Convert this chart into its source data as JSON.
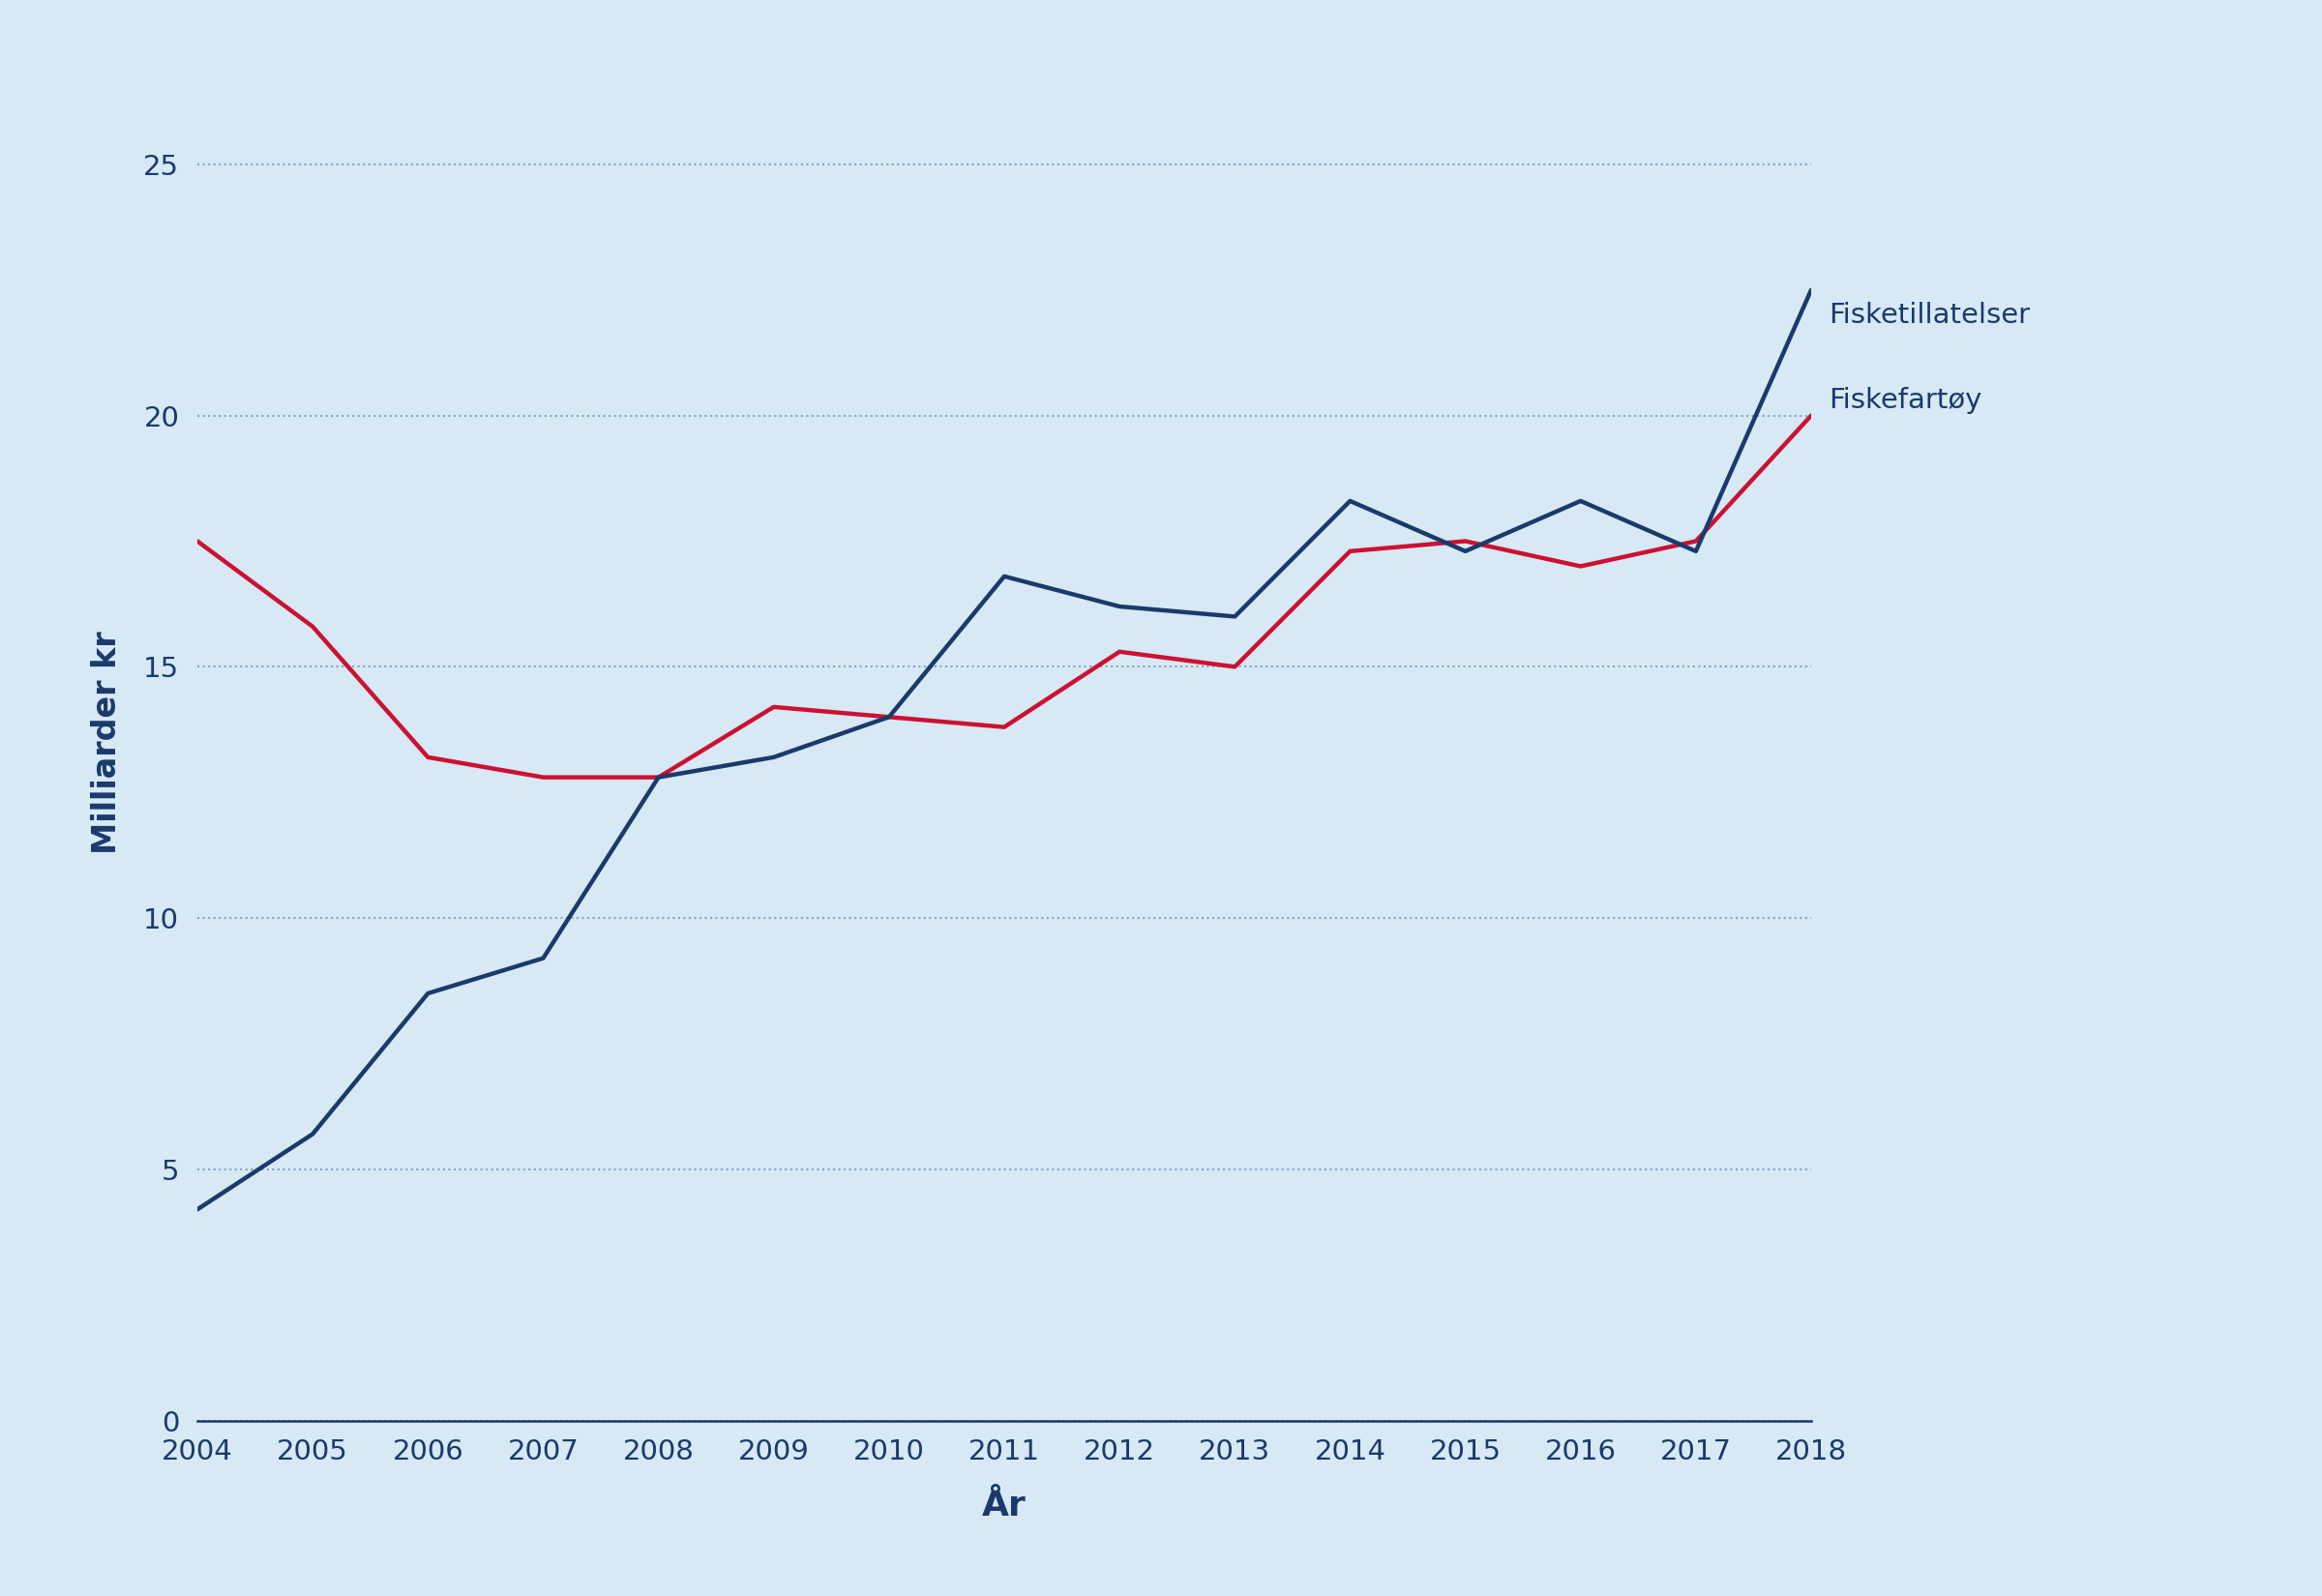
{
  "years": [
    2004,
    2005,
    2006,
    2007,
    2008,
    2009,
    2010,
    2011,
    2012,
    2013,
    2014,
    2015,
    2016,
    2017,
    2018
  ],
  "fisketillatelser": [
    4.2,
    5.7,
    8.5,
    9.2,
    12.8,
    13.2,
    14.0,
    16.8,
    16.2,
    16.0,
    18.3,
    17.3,
    18.3,
    17.3,
    22.5
  ],
  "fiskefartoy": [
    17.5,
    15.8,
    13.2,
    12.8,
    12.8,
    14.2,
    14.0,
    13.8,
    15.3,
    15.0,
    17.3,
    17.5,
    17.0,
    17.5,
    20.0
  ],
  "line_color_tillatelser": "#1b3a6b",
  "line_color_fartoy": "#cc1133",
  "background_color": "#d6e9f5",
  "ylabel": "Milliarder kr",
  "xlabel": "År",
  "label_tillatelser": "Fisketillatelser",
  "label_fartoy": "Fiskefartøy",
  "ylim": [
    0,
    27
  ],
  "yticks": [
    0,
    5,
    10,
    15,
    20,
    25
  ],
  "xlim_min": 2004,
  "xlim_max": 2018,
  "line_width": 3.2,
  "axis_color": "#1b3a6b",
  "tick_label_fontsize": 21,
  "axis_label_fontsize": 24,
  "annotation_fontsize": 21,
  "grid_color": "#3a5a8a",
  "grid_alpha": 0.5,
  "grid_linestyle": ":"
}
